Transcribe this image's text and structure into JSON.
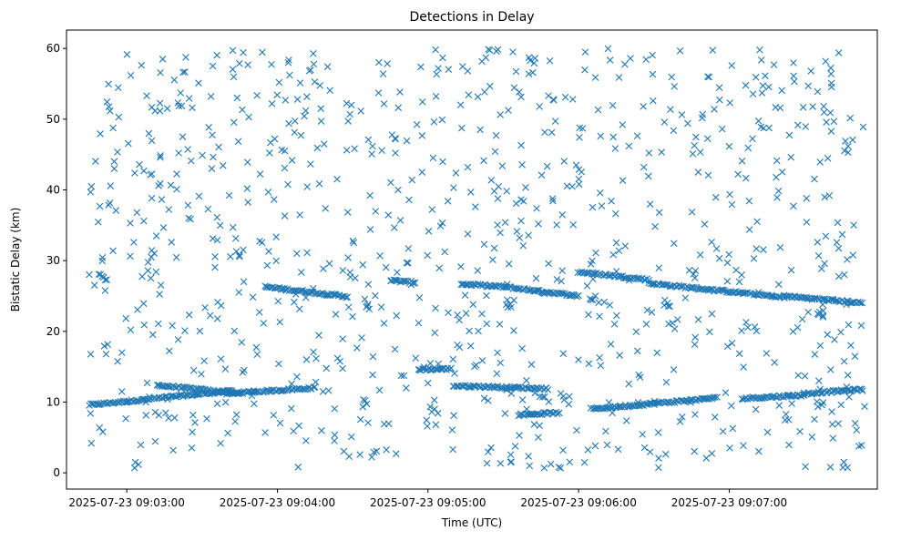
{
  "chart_data": {
    "type": "scatter",
    "title": "Detections in Delay",
    "xlabel": "Time (UTC)",
    "ylabel": "Bistatic Delay (km)",
    "x_unit": "seconds after 2025-07-23 09:02:00 UTC",
    "xlim": [
      36,
      359
    ],
    "ylim": [
      -2.3,
      62.6
    ],
    "xtick_values": [
      60,
      120,
      180,
      240,
      300
    ],
    "xtick_labels": [
      "2025-07-23 09:03:00",
      "2025-07-23 09:04:00",
      "2025-07-23 09:05:00",
      "2025-07-23 09:06:00",
      "2025-07-23 09:07:00"
    ],
    "ytick_values": [
      0,
      10,
      20,
      30,
      40,
      50,
      60
    ],
    "ytick_labels": [
      "0",
      "10",
      "20",
      "30",
      "40",
      "50",
      "60"
    ],
    "marker": "x",
    "color": "#1f77b4",
    "grid": false,
    "series": [
      {
        "name": "",
        "tracks": [
          {
            "x": [
              45,
              60
            ],
            "y": [
              9.6,
              10.1
            ]
          },
          {
            "x": [
              60,
              102
            ],
            "y": [
              10.1,
              11.6
            ]
          },
          {
            "x": [
              72,
              105
            ],
            "y": [
              12.4,
              11.2
            ]
          },
          {
            "x": [
              100,
              135
            ],
            "y": [
              11.2,
              12.0
            ]
          },
          {
            "x": [
              49,
              52
            ],
            "y": [
              28.2,
              27.2
            ]
          },
          {
            "x": [
              115,
              148
            ],
            "y": [
              26.3,
              24.9
            ]
          },
          {
            "x": [
              165,
              175
            ],
            "y": [
              27.2,
              26.9
            ]
          },
          {
            "x": [
              193,
              210
            ],
            "y": [
              26.7,
              26.3
            ]
          },
          {
            "x": [
              210,
              240
            ],
            "y": [
              26.3,
              25.0
            ]
          },
          {
            "x": [
              240,
              268
            ],
            "y": [
              28.4,
              27.3
            ]
          },
          {
            "x": [
              268,
              322
            ],
            "y": [
              26.8,
              24.8
            ]
          },
          {
            "x": [
              322,
              353
            ],
            "y": [
              25.0,
              24.0
            ]
          },
          {
            "x": [
              176,
              189
            ],
            "y": [
              14.6,
              14.7
            ]
          },
          {
            "x": [
              190,
              228
            ],
            "y": [
              12.3,
              11.9
            ]
          },
          {
            "x": [
              216,
              232
            ],
            "y": [
              8.2,
              8.5
            ]
          },
          {
            "x": [
              245,
              295
            ],
            "y": [
              9.0,
              10.6
            ]
          },
          {
            "x": [
              305,
              330
            ],
            "y": [
              10.5,
              11.0
            ]
          },
          {
            "x": [
              330,
              353
            ],
            "y": [
              11.2,
              11.8
            ]
          }
        ],
        "clusters": [
          {
            "x": 105,
            "y": 31.0,
            "count": 4
          },
          {
            "x": 150,
            "y": 28.0,
            "count": 3
          },
          {
            "x": 155,
            "y": 24.0,
            "count": 4
          },
          {
            "x": 155,
            "y": 9.8,
            "count": 4
          },
          {
            "x": 182,
            "y": 9.2,
            "count": 3
          },
          {
            "x": 213,
            "y": 24.0,
            "count": 5
          },
          {
            "x": 246,
            "y": 24.6,
            "count": 4
          },
          {
            "x": 275,
            "y": 23.5,
            "count": 4
          },
          {
            "x": 336,
            "y": 22.5,
            "count": 6
          },
          {
            "x": 336,
            "y": 9.8,
            "count": 4
          }
        ],
        "scatter_count": 900
      }
    ]
  }
}
